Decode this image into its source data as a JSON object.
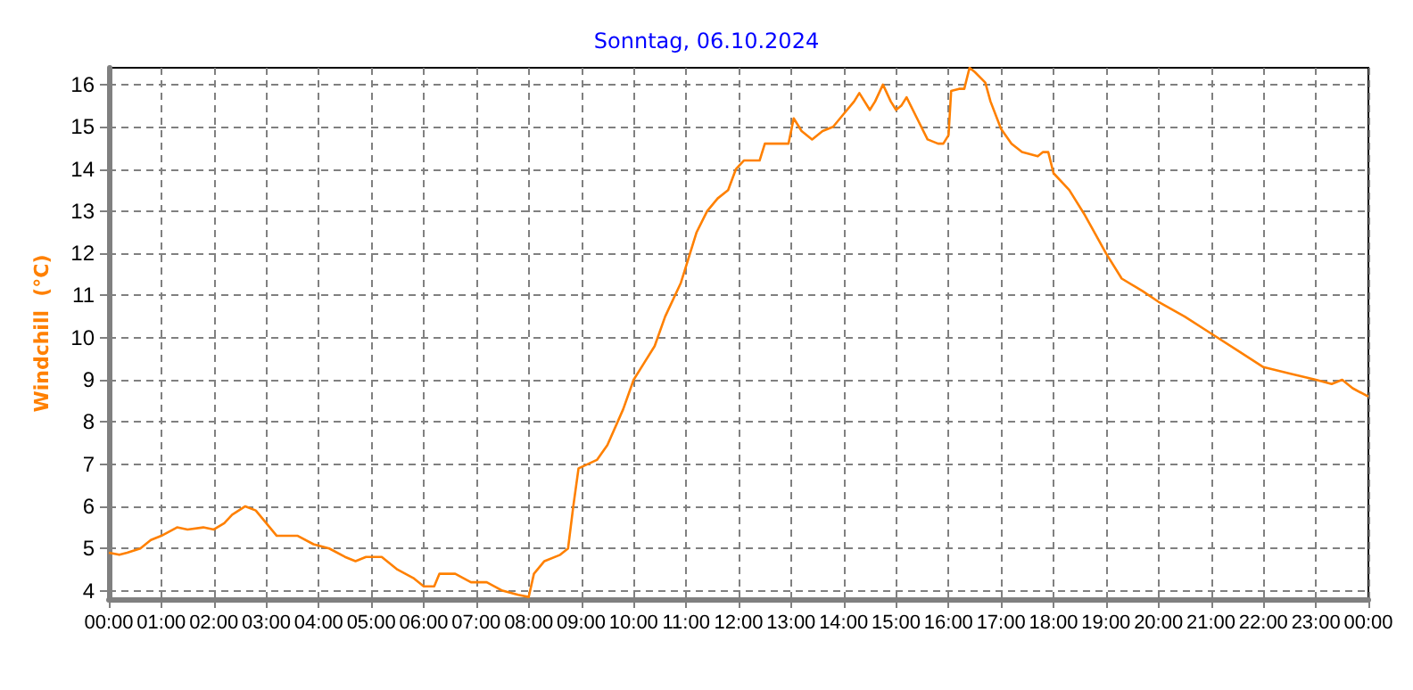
{
  "chart_data": {
    "type": "line",
    "title": "Sonntag, 06.10.2024",
    "ylabel": "Windchill  (°C)",
    "xlim": [
      0,
      24
    ],
    "ylim": [
      3.8,
      16.4
    ],
    "xticks": [
      {
        "value": 0,
        "label": "00:00"
      },
      {
        "value": 1,
        "label": "01:00"
      },
      {
        "value": 2,
        "label": "02:00"
      },
      {
        "value": 3,
        "label": "03:00"
      },
      {
        "value": 4,
        "label": "04:00"
      },
      {
        "value": 5,
        "label": "05:00"
      },
      {
        "value": 6,
        "label": "06:00"
      },
      {
        "value": 7,
        "label": "07:00"
      },
      {
        "value": 8,
        "label": "08:00"
      },
      {
        "value": 9,
        "label": "09:00"
      },
      {
        "value": 10,
        "label": "10:00"
      },
      {
        "value": 11,
        "label": "11:00"
      },
      {
        "value": 12,
        "label": "12:00"
      },
      {
        "value": 13,
        "label": "13:00"
      },
      {
        "value": 14,
        "label": "14:00"
      },
      {
        "value": 15,
        "label": "15:00"
      },
      {
        "value": 16,
        "label": "16:00"
      },
      {
        "value": 17,
        "label": "17:00"
      },
      {
        "value": 18,
        "label": "18:00"
      },
      {
        "value": 19,
        "label": "19:00"
      },
      {
        "value": 20,
        "label": "20:00"
      },
      {
        "value": 21,
        "label": "21:00"
      },
      {
        "value": 22,
        "label": "22:00"
      },
      {
        "value": 23,
        "label": "23:00"
      },
      {
        "value": 24,
        "label": "00:00"
      }
    ],
    "yticks": [
      4,
      5,
      6,
      7,
      8,
      9,
      10,
      11,
      12,
      13,
      14,
      15,
      16
    ],
    "grid": true,
    "series": [
      {
        "color": "#ff8000",
        "x": [
          0,
          0.2,
          0.35,
          0.6,
          0.8,
          1.0,
          1.3,
          1.5,
          1.8,
          2.0,
          2.2,
          2.35,
          2.6,
          2.8,
          3.0,
          3.2,
          3.6,
          3.9,
          4.2,
          4.5,
          4.7,
          4.9,
          5.2,
          5.5,
          5.8,
          6.0,
          6.2,
          6.3,
          6.6,
          6.9,
          7.2,
          7.5,
          7.8,
          8.0,
          8.1,
          8.3,
          8.6,
          8.75,
          8.85,
          8.95,
          9.3,
          9.5,
          9.8,
          10.0,
          10.2,
          10.4,
          10.6,
          10.9,
          11.0,
          11.2,
          11.4,
          11.6,
          11.8,
          11.95,
          12.1,
          12.4,
          12.5,
          12.95,
          13.05,
          13.2,
          13.4,
          13.6,
          13.8,
          14.0,
          14.2,
          14.3,
          14.5,
          14.6,
          14.75,
          14.9,
          15.0,
          15.1,
          15.2,
          15.4,
          15.6,
          15.8,
          15.9,
          16.0,
          16.05,
          16.2,
          16.3,
          16.4,
          16.5,
          16.7,
          16.8,
          17.0,
          17.2,
          17.4,
          17.7,
          17.8,
          17.9,
          18.0,
          18.3,
          18.6,
          19.0,
          19.3,
          19.7,
          20.0,
          20.5,
          21.0,
          21.5,
          22.0,
          22.5,
          23.0,
          23.3,
          23.5,
          23.7,
          24.0
        ],
        "values": [
          4.9,
          4.85,
          4.9,
          5.0,
          5.2,
          5.3,
          5.5,
          5.45,
          5.5,
          5.45,
          5.6,
          5.8,
          6.0,
          5.9,
          5.6,
          5.3,
          5.3,
          5.1,
          5.0,
          4.8,
          4.7,
          4.8,
          4.8,
          4.5,
          4.3,
          4.1,
          4.1,
          4.4,
          4.4,
          4.2,
          4.2,
          4.0,
          3.9,
          3.85,
          4.4,
          4.7,
          4.85,
          5.0,
          6.0,
          6.9,
          7.1,
          7.45,
          8.3,
          9.0,
          9.4,
          9.8,
          10.5,
          11.3,
          11.7,
          12.5,
          13.0,
          13.3,
          13.5,
          14.0,
          14.2,
          14.2,
          14.6,
          14.6,
          15.2,
          14.9,
          14.7,
          14.9,
          15.0,
          15.3,
          15.6,
          15.8,
          15.4,
          15.6,
          16.0,
          15.6,
          15.4,
          15.5,
          15.7,
          15.2,
          14.7,
          14.6,
          14.6,
          14.8,
          15.85,
          15.9,
          15.9,
          16.4,
          16.3,
          16.05,
          15.6,
          14.95,
          14.6,
          14.4,
          14.3,
          14.4,
          14.4,
          13.9,
          13.5,
          12.9,
          12.0,
          11.4,
          11.1,
          10.85,
          10.5,
          10.1,
          9.7,
          9.3,
          9.15,
          9.0,
          8.9,
          9.0,
          8.8,
          8.6
        ]
      }
    ]
  }
}
